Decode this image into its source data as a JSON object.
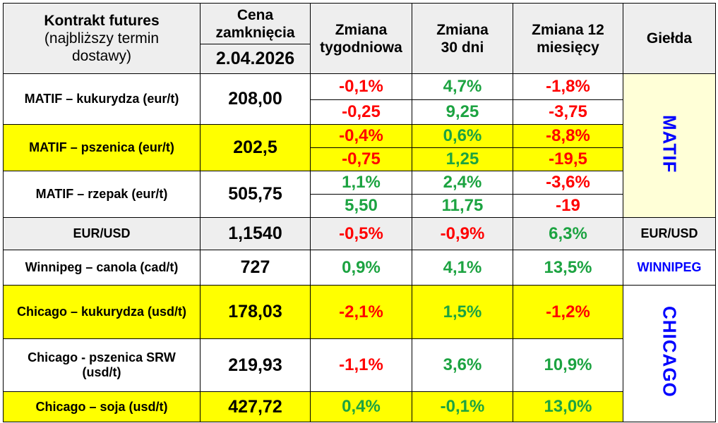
{
  "header": {
    "contract": "Kontrakt futures",
    "contract_sub": "(najbliższy termin dostawy)",
    "price": "Cena zamknięcia",
    "date": "2.04.2026",
    "weekly": "Zmiana tygodniowa",
    "d30": "Zmiana 30 dni",
    "m12": "Zmiana 12 miesięcy",
    "exchange": "Giełda"
  },
  "colors": {
    "negative": "#ff0000",
    "positive": "#1ca341",
    "highlight": "#ffff00",
    "exchange_text": "#0000ff"
  },
  "matif": [
    {
      "name": "MATIF – kukurydza  (eur/t)",
      "price": "208,00",
      "pct": [
        "-0,1%",
        "4,7%",
        "-1,8%"
      ],
      "abs": [
        "-0,25",
        "9,25",
        "-3,75"
      ]
    },
    {
      "name": "MATIF – pszenica (eur/t)",
      "price": "202,5",
      "pct": [
        "-0,4%",
        "0,6%",
        "-8,8%"
      ],
      "abs": [
        "-0,75",
        "1,25",
        "-19,5"
      ]
    },
    {
      "name": "MATIF – rzepak (eur/t)",
      "price": "505,75",
      "pct": [
        "1,1%",
        "2,4%",
        "-3,6%"
      ],
      "abs": [
        "5,50",
        "11,75",
        "-19"
      ]
    }
  ],
  "exchanges": {
    "matif": "MATIF",
    "eurusd": "EUR/USD",
    "winnipeg": "WINNIPEG",
    "chicago": "CHICAGO"
  },
  "eurusd": {
    "name": "EUR/USD",
    "price": "1,1540",
    "vals": [
      "-0,5%",
      "-0,9%",
      "6,3%"
    ]
  },
  "winnipeg": {
    "name": "Winnipeg – canola (cad/t)",
    "price": "727",
    "vals": [
      "0,9%",
      "4,1%",
      "13,5%"
    ]
  },
  "chicago": [
    {
      "name": "Chicago – kukurydza (usd/t)",
      "price": "178,03",
      "vals": [
        "-2,1%",
        "1,5%",
        "-1,2%"
      ]
    },
    {
      "name": "Chicago - pszenica SRW (usd/t)",
      "price": "219,93",
      "vals": [
        "-1,1%",
        "3,6%",
        "10,9%"
      ]
    },
    {
      "name": "Chicago – soja (usd/t)",
      "price": "427,72",
      "vals": [
        "0,4%",
        "-0,1%",
        "13,0%"
      ]
    }
  ]
}
